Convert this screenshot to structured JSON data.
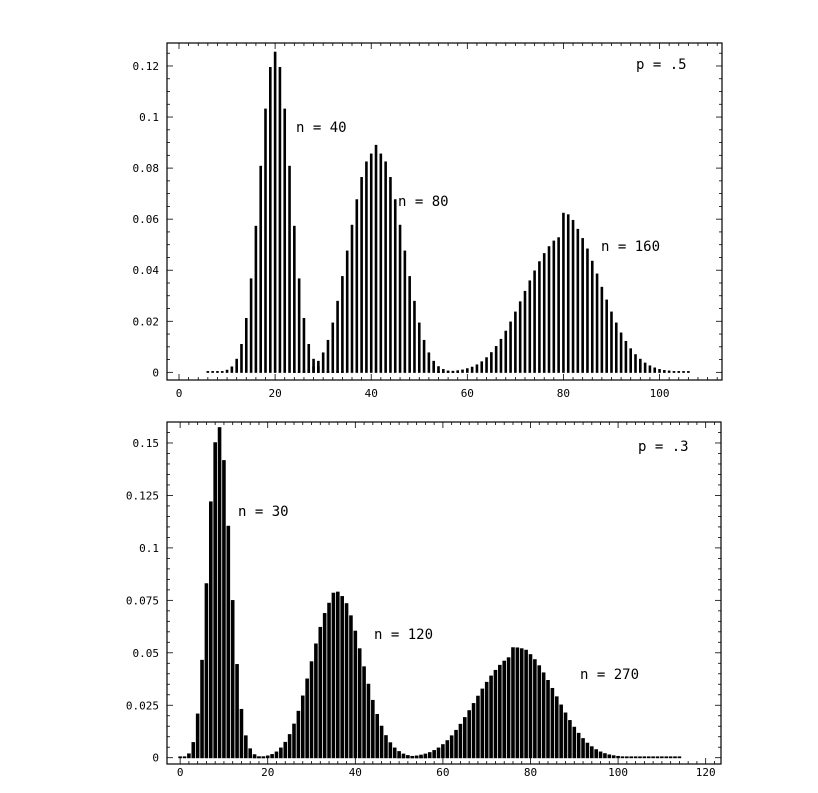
{
  "chart_data": [
    {
      "type": "bar",
      "annotation": "p = .5",
      "p": 0.5,
      "xlim": [
        -2.5,
        113
      ],
      "ylim": [
        -0.003,
        0.129
      ],
      "xticks": [
        0,
        20,
        40,
        60,
        80,
        100
      ],
      "xtick_labels": [
        "0",
        "20",
        "40",
        "60",
        "80",
        "100"
      ],
      "yticks": [
        0,
        0.02,
        0.04,
        0.06,
        0.08,
        0.1,
        0.12
      ],
      "ytick_labels": [
        "0",
        "0.02",
        "0.04",
        "0.06",
        "0.08",
        "0.1",
        "0.12"
      ],
      "x_minor_step": 2,
      "y_minor_step": 0.005,
      "series": [
        {
          "label": "n = 40",
          "n": 40,
          "x_start": 6,
          "values": [
            1e-05,
            4e-05,
            0.0001,
            0.0003,
            0.0008,
            0.0021,
            0.0051,
            0.0109,
            0.0211,
            0.0366,
            0.0572,
            0.0807,
            0.1031,
            0.1194,
            0.1254,
            0.1194,
            0.1031,
            0.0807,
            0.0572,
            0.0366,
            0.0211,
            0.0109,
            0.0051,
            0.0021,
            0.0008,
            0.0003,
            0.0001,
            4e-05,
            1e-05
          ]
        },
        {
          "label": "n = 80",
          "n": 80,
          "x_start": 24,
          "values": [
            0.0001,
            0.0002,
            0.0005,
            0.0011,
            0.0022,
            0.0043,
            0.0076,
            0.0125,
            0.0193,
            0.0278,
            0.0375,
            0.0475,
            0.0576,
            0.0676,
            0.0763,
            0.0824,
            0.0855,
            0.0889,
            0.0855,
            0.0824,
            0.0763,
            0.0676,
            0.0576,
            0.0475,
            0.0375,
            0.0278,
            0.0193,
            0.0125,
            0.0076,
            0.0043,
            0.0022,
            0.0011,
            0.0005,
            0.0002,
            0.0001
          ]
        },
        {
          "label": "n = 160",
          "n": 160,
          "x_start": 54,
          "values": [
            0.0001,
            0.0001,
            0.0002,
            0.0004,
            0.0006,
            0.0009,
            0.0014,
            0.002,
            0.0029,
            0.0041,
            0.0057,
            0.0077,
            0.0101,
            0.0129,
            0.0161,
            0.0197,
            0.0236,
            0.0276,
            0.0317,
            0.0358,
            0.0397,
            0.0433,
            0.0465,
            0.0492,
            0.0514,
            0.0527,
            0.0623,
            0.0617,
            0.0595,
            0.056,
            0.0524,
            0.0483,
            0.0435,
            0.0385,
            0.0333,
            0.0283,
            0.0236,
            0.0193,
            0.0154,
            0.0121,
            0.0092,
            0.0069,
            0.0051,
            0.0036,
            0.0025,
            0.0017,
            0.0011,
            0.0007,
            0.0005,
            0.0003,
            0.0002,
            0.0001,
            0.0001
          ]
        }
      ]
    },
    {
      "type": "bar",
      "annotation": "p = .3",
      "p": 0.3,
      "xlim": [
        -3,
        123.5
      ],
      "ylim": [
        -0.003,
        0.16
      ],
      "xticks": [
        0,
        20,
        40,
        60,
        80,
        100,
        120
      ],
      "xtick_labels": [
        "0",
        "20",
        "40",
        "60",
        "80",
        "100",
        "120"
      ],
      "yticks": [
        0,
        0.025,
        0.05,
        0.075,
        0.1,
        0.125,
        0.15
      ],
      "ytick_labels": [
        "0",
        "0.025",
        "0.05",
        "0.075",
        "0.1",
        "0.125",
        "0.15"
      ],
      "x_minor_step": 2,
      "y_minor_step": 0.005,
      "series": [
        {
          "label": "n = 30",
          "n": 30,
          "x_start": 0,
          "values": [
            2e-05,
            0.0003,
            0.0018,
            0.0072,
            0.0208,
            0.0464,
            0.0829,
            0.1219,
            0.1501,
            0.1573,
            0.1416,
            0.1103,
            0.0749,
            0.0444,
            0.023,
            0.0104,
            0.0042,
            0.0014,
            0.0004,
            0.0001
          ]
        },
        {
          "label": "n = 120",
          "n": 120,
          "x_start": 17,
          "values": [
            0.0001,
            0.0002,
            0.0004,
            0.0008,
            0.0015,
            0.0027,
            0.0046,
            0.0073,
            0.011,
            0.016,
            0.0221,
            0.0294,
            0.0375,
            0.0457,
            0.0542,
            0.0621,
            0.0687,
            0.0736,
            0.0784,
            0.0789,
            0.0768,
            0.0734,
            0.0676,
            0.0603,
            0.0519,
            0.0433,
            0.035,
            0.0273,
            0.0206,
            0.015,
            0.0105,
            0.0071,
            0.0046,
            0.0029,
            0.0017,
            0.001,
            0.0006,
            0.0003,
            0.0002,
            0.0001
          ]
        },
        {
          "label": "n = 270",
          "n": 270,
          "x_start": 50,
          "values": [
            0.0001,
            0.0002,
            0.0003,
            0.0005,
            0.0008,
            0.0012,
            0.0017,
            0.0024,
            0.0034,
            0.0046,
            0.0062,
            0.0081,
            0.0104,
            0.013,
            0.0159,
            0.0191,
            0.0224,
            0.0258,
            0.0293,
            0.0327,
            0.0359,
            0.0389,
            0.0416,
            0.044,
            0.046,
            0.0476,
            0.0524,
            0.0523,
            0.0519,
            0.0512,
            0.0491,
            0.0467,
            0.0438,
            0.0404,
            0.0368,
            0.033,
            0.029,
            0.0251,
            0.0213,
            0.0177,
            0.0145,
            0.0116,
            0.0091,
            0.0069,
            0.0052,
            0.0038,
            0.0027,
            0.0019,
            0.0013,
            0.0009,
            0.0006,
            0.0004,
            0.0003,
            0.0002,
            0.0001,
            0.0001,
            0.0001,
            0.0001,
            0.0001,
            0.0001,
            0.0001,
            0.0001,
            0.0001,
            0.0001,
            0.0001
          ]
        }
      ]
    }
  ]
}
